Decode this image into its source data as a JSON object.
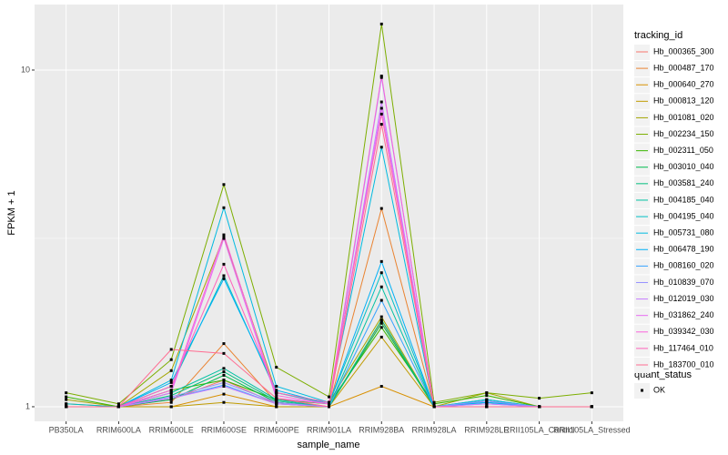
{
  "chart_data": {
    "type": "line",
    "log_y": true,
    "grid": true,
    "x_label": "sample_name",
    "y_label": "FPKM + 1",
    "categories": [
      "PB350LA",
      "RRIM600LA",
      "RRIM600LE",
      "RRIM600SE",
      "RRIM600PE",
      "RRIM901LA",
      "RRIM928BA",
      "RRIM928LA",
      "RRIM928LE",
      "RRII105LA_Control",
      "RRII105LA_Stressed"
    ],
    "ylim": [
      0.905,
      15.65
    ],
    "yticks": [
      1,
      10
    ],
    "legend_title": "tracking_id",
    "legend_position": "right",
    "shape_legend": {
      "title": "quant_status",
      "labels": [
        "OK"
      ]
    },
    "series": [
      {
        "name": "Hb_000365_300",
        "color": "#F8766D",
        "values": [
          1,
          1,
          1.05,
          1.2,
          1.02,
          1,
          1.8,
          1,
          1,
          1,
          1
        ]
      },
      {
        "name": "Hb_000487_170",
        "color": "#EA8331",
        "values": [
          1.02,
          1,
          1.03,
          1.54,
          1.03,
          1,
          3.88,
          1,
          1,
          1,
          1
        ]
      },
      {
        "name": "Hb_000640_270",
        "color": "#D89000",
        "values": [
          1,
          1,
          1,
          1.09,
          1,
          1,
          1.15,
          1,
          1,
          1,
          1
        ]
      },
      {
        "name": "Hb_000813_120",
        "color": "#C09B00",
        "values": [
          1,
          1,
          1,
          1.03,
          1,
          1,
          1.61,
          1,
          1,
          1,
          1
        ]
      },
      {
        "name": "Hb_001081_020",
        "color": "#A3A500",
        "values": [
          1.05,
          1,
          1.28,
          3.2,
          1.1,
          1.03,
          1.85,
          1,
          1.1,
          1,
          1
        ]
      },
      {
        "name": "Hb_002234_150",
        "color": "#7CAE00",
        "values": [
          1.1,
          1.02,
          1.38,
          4.57,
          1.31,
          1.07,
          13.7,
          1.03,
          1.1,
          1.06,
          1.1
        ]
      },
      {
        "name": "Hb_002311_050",
        "color": "#39B600",
        "values": [
          1.07,
          1,
          1.12,
          1.2,
          1.05,
          1.02,
          1.72,
          1.02,
          1.08,
          1,
          1
        ]
      },
      {
        "name": "Hb_003010_040",
        "color": "#00BB4E",
        "values": [
          1,
          1,
          1.05,
          1.24,
          1.03,
          1,
          1.77,
          1,
          1.05,
          1,
          1
        ]
      },
      {
        "name": "Hb_003581_240",
        "color": "#00BF7D",
        "values": [
          1,
          1,
          1.08,
          1.27,
          1.04,
          1,
          1.81,
          1,
          1.03,
          1,
          1
        ]
      },
      {
        "name": "Hb_004185_040",
        "color": "#00C1A3",
        "values": [
          1,
          1,
          1.1,
          1.3,
          1.05,
          1,
          2.27,
          1,
          1,
          1,
          1
        ]
      },
      {
        "name": "Hb_004195_040",
        "color": "#00BFC4",
        "values": [
          1.02,
          1,
          1.15,
          2.45,
          1.1,
          1.02,
          2.5,
          1,
          1.04,
          1,
          1
        ]
      },
      {
        "name": "Hb_005731_080",
        "color": "#00BAE0",
        "values": [
          1,
          1,
          1.2,
          3.9,
          1.15,
          1.03,
          5.9,
          1,
          1.05,
          1,
          1
        ]
      },
      {
        "name": "Hb_006478_190",
        "color": "#00B0F6",
        "values": [
          1,
          1,
          1.18,
          2.4,
          1.12,
          1.02,
          2.7,
          1,
          1.03,
          1,
          1
        ]
      },
      {
        "name": "Hb_008160_020",
        "color": "#35A2FF",
        "values": [
          1,
          1,
          1.06,
          1.16,
          1.02,
          1,
          2.07,
          1,
          1.02,
          1,
          1
        ]
      },
      {
        "name": "Hb_010839_070",
        "color": "#9590FF",
        "values": [
          1,
          1,
          1.07,
          1.18,
          1.03,
          1,
          9.5,
          1,
          1.04,
          1,
          1
        ]
      },
      {
        "name": "Hb_012019_030",
        "color": "#C77CFF",
        "values": [
          1,
          1,
          1.06,
          1.15,
          1.02,
          1,
          8.04,
          1,
          1.02,
          1,
          1
        ]
      },
      {
        "name": "Hb_031862_240",
        "color": "#E76BF3",
        "values": [
          1,
          1,
          1.1,
          3.16,
          1.06,
          1.02,
          7.7,
          1,
          1,
          1,
          1
        ]
      },
      {
        "name": "Hb_039342_030",
        "color": "#FA62DB",
        "values": [
          1,
          1,
          1.12,
          3.24,
          1.08,
          1.02,
          9.6,
          1,
          1,
          1,
          1
        ]
      },
      {
        "name": "Hb_117464_010",
        "color": "#FF62BC",
        "values": [
          1,
          1,
          1.15,
          2.65,
          1.1,
          1.03,
          7.4,
          1,
          1,
          1,
          1
        ]
      },
      {
        "name": "Hb_183700_010",
        "color": "#FF6C91",
        "values": [
          1,
          1,
          1.48,
          1.44,
          1.06,
          1,
          6.9,
          1,
          1,
          1,
          1
        ]
      }
    ]
  }
}
